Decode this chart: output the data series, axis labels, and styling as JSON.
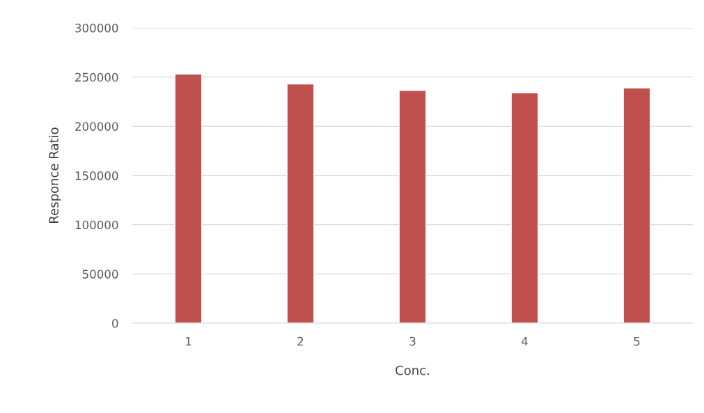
{
  "chart_data": {
    "type": "bar",
    "xlabel": "Conc.",
    "ylabel": "Responce Ratio",
    "categories": [
      "1",
      "2",
      "3",
      "4",
      "5"
    ],
    "values": [
      253000,
      243000,
      236500,
      234000,
      239000
    ],
    "color": "#c0504d",
    "ylim": [
      0,
      300000
    ],
    "yticks": [
      0,
      50000,
      100000,
      150000,
      200000,
      250000,
      300000
    ],
    "grid": "y"
  }
}
